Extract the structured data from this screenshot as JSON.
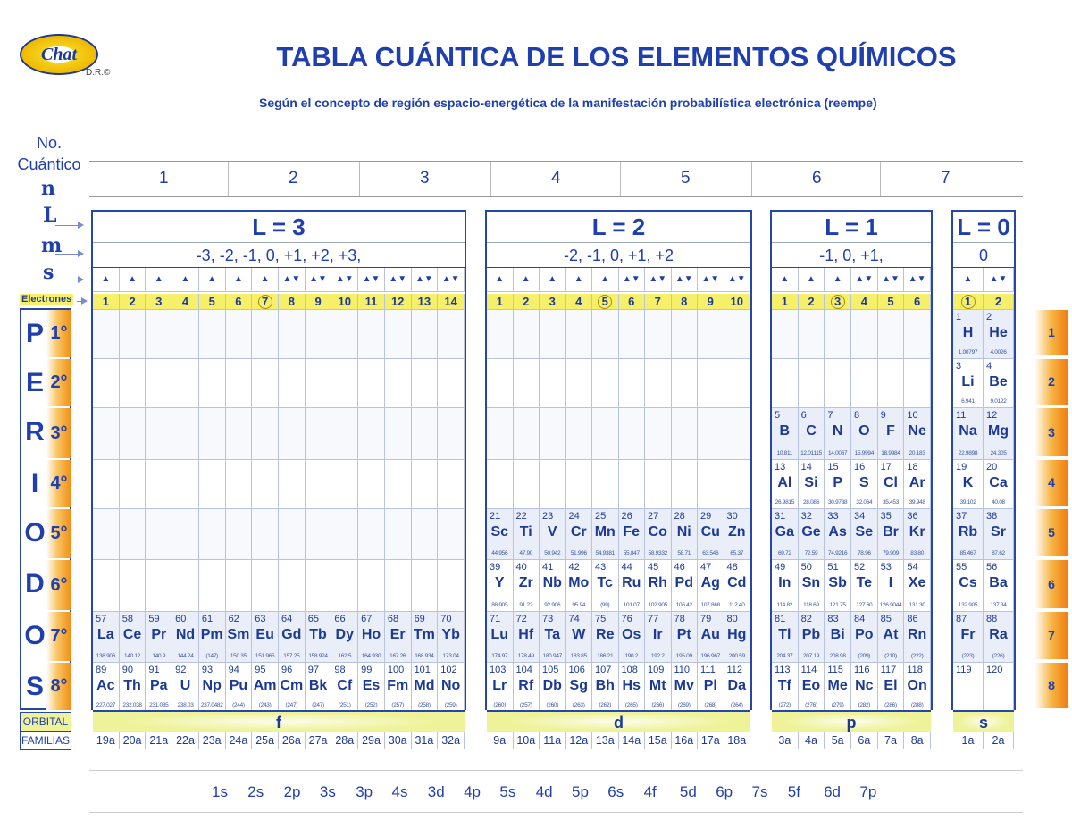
{
  "header": {
    "logo_text": "Chat",
    "dr": "D.R.©",
    "title": "TABLA CUÁNTICA DE LOS ELEMENTOS QUÍMICOS",
    "subtitle": "Según el concepto de región espacio-energética de la manifestación probabilística electrónica (reempe)"
  },
  "left_labels": {
    "no": "No.",
    "cuantico": "Cuántico",
    "n": "n",
    "l": "L",
    "m": "m",
    "s": "s",
    "electrones": "Electrones",
    "orbital": "ORBITAL",
    "familias": "FAMILIAS"
  },
  "n_values": [
    "1",
    "2",
    "3",
    "4",
    "5",
    "6",
    "7"
  ],
  "periodos": {
    "letters": [
      "P",
      "E",
      "R",
      "I",
      "O",
      "D",
      "O",
      "S"
    ],
    "degrees": [
      "1°",
      "2°",
      "3°",
      "4°",
      "5°",
      "6°",
      "7°",
      "8°"
    ],
    "right_tabs": [
      "1",
      "2",
      "3",
      "4",
      "5",
      "6",
      "7",
      "8"
    ]
  },
  "colors": {
    "blue": "#1f3fae",
    "yellow": "#f6ef6a",
    "orange": "#ef7c10"
  },
  "blocks": [
    {
      "id": "f",
      "l_label": "L = 3",
      "m_values": "-3,  -2,  -1,  0,  +1,  +2, +3,",
      "orbital": "f",
      "circled": 7,
      "spins": [
        "up",
        "up",
        "up",
        "up",
        "up",
        "up",
        "up",
        "updown",
        "updown",
        "updown",
        "updown",
        "updown",
        "updown",
        "updown"
      ],
      "electrons": [
        "1",
        "2",
        "3",
        "4",
        "5",
        "6",
        "7",
        "8",
        "9",
        "10",
        "11",
        "12",
        "13",
        "14"
      ],
      "families": [
        "19a",
        "20a",
        "21a",
        "22a",
        "23a",
        "24a",
        "25a",
        "26a",
        "27a",
        "28a",
        "29a",
        "30a",
        "31a",
        "32a"
      ],
      "rows": [
        {
          "period": 7,
          "cells": [
            [
              "57",
              "La",
              "138.906"
            ],
            [
              "58",
              "Ce",
              "140.12"
            ],
            [
              "59",
              "Pr",
              "140.9"
            ],
            [
              "60",
              "Nd",
              "144.24"
            ],
            [
              "61",
              "Pm",
              "(147)"
            ],
            [
              "62",
              "Sm",
              "150.35"
            ],
            [
              "63",
              "Eu",
              "151.965"
            ],
            [
              "64",
              "Gd",
              "157.25"
            ],
            [
              "65",
              "Tb",
              "158.924"
            ],
            [
              "66",
              "Dy",
              "162.5"
            ],
            [
              "67",
              "Ho",
              "164.930"
            ],
            [
              "68",
              "Er",
              "167.26"
            ],
            [
              "69",
              "Tm",
              "168.934"
            ],
            [
              "70",
              "Yb",
              "173.04"
            ]
          ]
        },
        {
          "period": 8,
          "cells": [
            [
              "89",
              "Ac",
              "227.027"
            ],
            [
              "90",
              "Th",
              "232.038"
            ],
            [
              "91",
              "Pa",
              "231.035"
            ],
            [
              "92",
              "U",
              "238.03"
            ],
            [
              "93",
              "Np",
              "237.0482"
            ],
            [
              "94",
              "Pu",
              "(244)"
            ],
            [
              "95",
              "Am",
              "(243)"
            ],
            [
              "96",
              "Cm",
              "(247)"
            ],
            [
              "97",
              "Bk",
              "(247)"
            ],
            [
              "98",
              "Cf",
              "(251)"
            ],
            [
              "99",
              "Es",
              "(252)"
            ],
            [
              "100",
              "Fm",
              "(257)"
            ],
            [
              "101",
              "Md",
              "(258)"
            ],
            [
              "102",
              "No",
              "(259)"
            ]
          ]
        }
      ]
    },
    {
      "id": "d",
      "l_label": "L = 2",
      "m_values": "-2, -1, 0, +1, +2",
      "orbital": "d",
      "circled": 5,
      "spins": [
        "up",
        "up",
        "up",
        "up",
        "up",
        "updown",
        "updown",
        "updown",
        "updown",
        "updown"
      ],
      "electrons": [
        "1",
        "2",
        "3",
        "4",
        "5",
        "6",
        "7",
        "8",
        "9",
        "10"
      ],
      "families": [
        "9a",
        "10a",
        "11a",
        "12a",
        "13a",
        "14a",
        "15a",
        "16a",
        "17a",
        "18a"
      ],
      "rows": [
        {
          "period": 5,
          "cells": [
            [
              "21",
              "Sc",
              "44.956"
            ],
            [
              "22",
              "Ti",
              "47.90"
            ],
            [
              "23",
              "V",
              "50.942"
            ],
            [
              "24",
              "Cr",
              "51.996"
            ],
            [
              "25",
              "Mn",
              "54.9381"
            ],
            [
              "26",
              "Fe",
              "55.847"
            ],
            [
              "27",
              "Co",
              "58.9332"
            ],
            [
              "28",
              "Ni",
              "58.71"
            ],
            [
              "29",
              "Cu",
              "63.546"
            ],
            [
              "30",
              "Zn",
              "65.37"
            ]
          ]
        },
        {
          "period": 6,
          "cells": [
            [
              "39",
              "Y",
              "88.905"
            ],
            [
              "40",
              "Zr",
              "91.22"
            ],
            [
              "41",
              "Nb",
              "92.906"
            ],
            [
              "42",
              "Mo",
              "95.94"
            ],
            [
              "43",
              "Tc",
              "(99)"
            ],
            [
              "44",
              "Ru",
              "101.07"
            ],
            [
              "45",
              "Rh",
              "102.905"
            ],
            [
              "46",
              "Pd",
              "106.42"
            ],
            [
              "47",
              "Ag",
              "107.868"
            ],
            [
              "48",
              "Cd",
              "112.40"
            ]
          ]
        },
        {
          "period": 7,
          "cells": [
            [
              "71",
              "Lu",
              "174.97"
            ],
            [
              "72",
              "Hf",
              "178.49"
            ],
            [
              "73",
              "Ta",
              "180.947"
            ],
            [
              "74",
              "W",
              "183.85"
            ],
            [
              "75",
              "Re",
              "186.21"
            ],
            [
              "76",
              "Os",
              "190.2"
            ],
            [
              "77",
              "Ir",
              "192.2"
            ],
            [
              "78",
              "Pt",
              "195.09"
            ],
            [
              "79",
              "Au",
              "196.967"
            ],
            [
              "80",
              "Hg",
              "200.59"
            ]
          ]
        },
        {
          "period": 8,
          "cells": [
            [
              "103",
              "Lr",
              "(260)"
            ],
            [
              "104",
              "Rf",
              "(257)"
            ],
            [
              "105",
              "Db",
              "(260)"
            ],
            [
              "106",
              "Sg",
              "(263)"
            ],
            [
              "107",
              "Bh",
              "(262)"
            ],
            [
              "108",
              "Hs",
              "(265)"
            ],
            [
              "109",
              "Mt",
              "(266)"
            ],
            [
              "110",
              "Mv",
              "(269)"
            ],
            [
              "111",
              "Pl",
              "(268)"
            ],
            [
              "112",
              "Da",
              "(264)"
            ]
          ]
        }
      ]
    },
    {
      "id": "p",
      "l_label": "L = 1",
      "m_values": "-1,  0,  +1,",
      "orbital": "p",
      "circled": 3,
      "spins": [
        "up",
        "up",
        "up",
        "updown",
        "updown",
        "updown"
      ],
      "electrons": [
        "1",
        "2",
        "3",
        "4",
        "5",
        "6"
      ],
      "families": [
        "3a",
        "4a",
        "5a",
        "6a",
        "7a",
        "8a"
      ],
      "rows": [
        {
          "period": 3,
          "cells": [
            [
              "5",
              "B",
              "10.811"
            ],
            [
              "6",
              "C",
              "12.01115"
            ],
            [
              "7",
              "N",
              "14.0067"
            ],
            [
              "8",
              "O",
              "15.9994"
            ],
            [
              "9",
              "F",
              "18.9984"
            ],
            [
              "10",
              "Ne",
              "20.183"
            ]
          ]
        },
        {
          "period": 4,
          "cells": [
            [
              "13",
              "Al",
              "26.9815"
            ],
            [
              "14",
              "Si",
              "28.086"
            ],
            [
              "15",
              "P",
              "30.9738"
            ],
            [
              "16",
              "S",
              "32.064"
            ],
            [
              "17",
              "Cl",
              "35.453"
            ],
            [
              "18",
              "Ar",
              "39.948"
            ]
          ]
        },
        {
          "period": 5,
          "cells": [
            [
              "31",
              "Ga",
              "69.72"
            ],
            [
              "32",
              "Ge",
              "72.59"
            ],
            [
              "33",
              "As",
              "74.9216"
            ],
            [
              "34",
              "Se",
              "78.96"
            ],
            [
              "35",
              "Br",
              "79.909"
            ],
            [
              "36",
              "Kr",
              "83.80"
            ]
          ]
        },
        {
          "period": 6,
          "cells": [
            [
              "49",
              "In",
              "114.82"
            ],
            [
              "50",
              "Sn",
              "118.69"
            ],
            [
              "51",
              "Sb",
              "121.75"
            ],
            [
              "52",
              "Te",
              "127.60"
            ],
            [
              "53",
              "I",
              "126.9044"
            ],
            [
              "54",
              "Xe",
              "131.30"
            ]
          ]
        },
        {
          "period": 7,
          "cells": [
            [
              "81",
              "Tl",
              "204.37"
            ],
            [
              "82",
              "Pb",
              "207.19"
            ],
            [
              "83",
              "Bi",
              "208.98"
            ],
            [
              "84",
              "Po",
              "(209)"
            ],
            [
              "85",
              "At",
              "(210)"
            ],
            [
              "86",
              "Rn",
              "(222)"
            ]
          ]
        },
        {
          "period": 8,
          "cells": [
            [
              "113",
              "Tf",
              "(272)"
            ],
            [
              "114",
              "Eo",
              "(276)"
            ],
            [
              "115",
              "Me",
              "(279)"
            ],
            [
              "116",
              "Nc",
              "(282)"
            ],
            [
              "117",
              "El",
              "(286)"
            ],
            [
              "118",
              "On",
              "(288)"
            ]
          ]
        }
      ]
    },
    {
      "id": "s",
      "l_label": "L = 0",
      "m_values": "0",
      "orbital": "s",
      "circled": 1,
      "spins": [
        "up",
        "updown"
      ],
      "electrons": [
        "1",
        "2"
      ],
      "families": [
        "1a",
        "2a"
      ],
      "rows": [
        {
          "period": 1,
          "cells": [
            [
              "1",
              "H",
              "1.00797"
            ],
            [
              "2",
              "He",
              "4.0026"
            ]
          ]
        },
        {
          "period": 2,
          "cells": [
            [
              "3",
              "Li",
              "6.941"
            ],
            [
              "4",
              "Be",
              "9.0122"
            ]
          ]
        },
        {
          "period": 3,
          "cells": [
            [
              "11",
              "Na",
              "22.9898"
            ],
            [
              "12",
              "Mg",
              "24.305"
            ]
          ]
        },
        {
          "period": 4,
          "cells": [
            [
              "19",
              "K",
              "39.102"
            ],
            [
              "20",
              "Ca",
              "40.08"
            ]
          ]
        },
        {
          "period": 5,
          "cells": [
            [
              "37",
              "Rb",
              "85.467"
            ],
            [
              "38",
              "Sr",
              "87.62"
            ]
          ]
        },
        {
          "period": 6,
          "cells": [
            [
              "55",
              "Cs",
              "132.905"
            ],
            [
              "56",
              "Ba",
              "137.34"
            ]
          ]
        },
        {
          "period": 7,
          "cells": [
            [
              "87",
              "Fr",
              "(223)"
            ],
            [
              "88",
              "Ra",
              "(226)"
            ]
          ]
        },
        {
          "period": 8,
          "cells": [
            [
              "119",
              "",
              ""
            ],
            [
              "120",
              "",
              ""
            ]
          ]
        }
      ]
    }
  ],
  "orbital_sequence": [
    "1s",
    "2s",
    "2p",
    "3s",
    "3p",
    "4s",
    "3d",
    "4p",
    "5s",
    "4d",
    "5p",
    "6s",
    "4f",
    "5d",
    "6p",
    "7s",
    "5f",
    "6d",
    "7p"
  ]
}
